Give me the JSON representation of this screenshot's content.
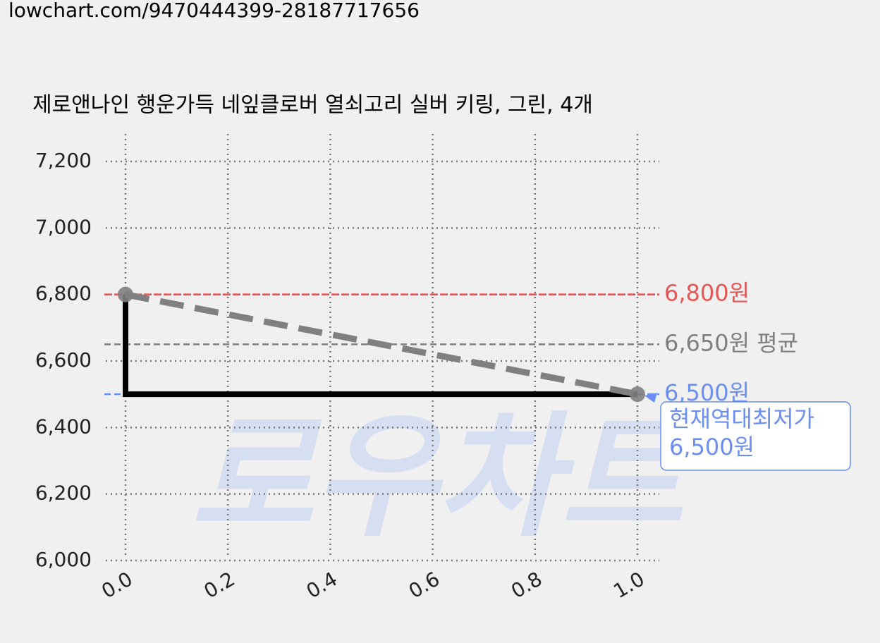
{
  "url": "lowchart.com/9470444399-28187717656",
  "watermark": "로우차트",
  "chart_data": {
    "type": "line",
    "title": "제로앤나인 행운가득 네잎클로버 열쇠고리 실버 키링, 그린, 4개",
    "x": [
      0,
      1
    ],
    "series": [
      {
        "color": "#000000",
        "values": [
          6800,
          6500
        ],
        "step": "pre",
        "width": 8
      },
      {
        "color": "#808080",
        "values": [
          6800,
          6500
        ],
        "dash": true,
        "width": 9,
        "markers": true
      }
    ],
    "xlim": [
      0,
      1
    ],
    "xticks": [
      {
        "value": 0,
        "label": "0.0"
      },
      {
        "value": 0.2,
        "label": "0.2"
      },
      {
        "value": 0.4,
        "label": "0.4"
      },
      {
        "value": 0.6,
        "label": "0.6"
      },
      {
        "value": 0.8,
        "label": "0.8"
      },
      {
        "value": 1,
        "label": "1.0"
      }
    ],
    "ylim": [
      6000,
      7200
    ],
    "yticks": [
      {
        "value": 6000,
        "label": "6,000"
      },
      {
        "value": 6200,
        "label": "6,200"
      },
      {
        "value": 6400,
        "label": "6,400"
      },
      {
        "value": 6600,
        "label": "6,600"
      },
      {
        "value": 6800,
        "label": "6,800"
      },
      {
        "value": 7000,
        "label": "7,000"
      },
      {
        "value": 7200,
        "label": "7,200"
      }
    ],
    "grid": true,
    "hlines": [
      {
        "value": 6800,
        "label": "6,800원",
        "color": "#e85555"
      },
      {
        "value": 6650,
        "label": "6,650원 평균",
        "color": "#808080"
      },
      {
        "value": 6500,
        "label": "6,500원",
        "color": "#6b8ef0"
      }
    ],
    "annotation": {
      "x": 1,
      "y": 6500,
      "lines": [
        "현재역대최저가",
        "6,500원"
      ],
      "color": "#6b8ef0"
    }
  }
}
